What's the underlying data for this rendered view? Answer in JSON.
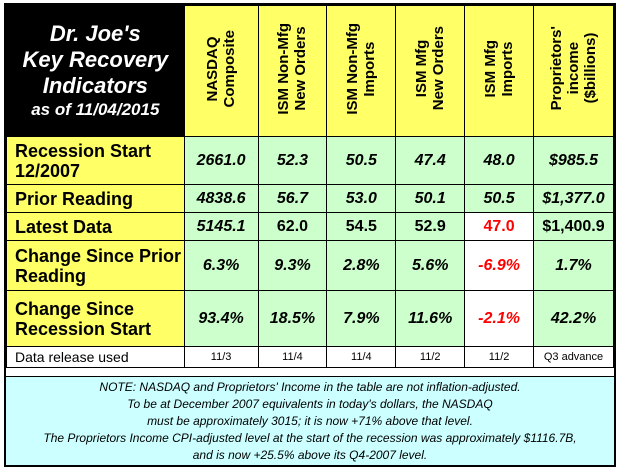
{
  "title": {
    "line1": "Dr. Joe's",
    "line2": "Key Recovery",
    "line3": "Indicators",
    "line4": "as of 11/04/2015"
  },
  "columns": [
    {
      "key": "nasdaq",
      "label": "NASDAQ\nComposite"
    },
    {
      "key": "ism_nonmfg_new_orders",
      "label": "ISM Non-Mfg\nNew Orders"
    },
    {
      "key": "ism_nonmfg_imports",
      "label": "ISM Non-Mfg\nImports"
    },
    {
      "key": "ism_mfg_new_orders",
      "label": "ISM Mfg\nNew Orders"
    },
    {
      "key": "ism_mfg_imports",
      "label": "ISM Mfg\nImports"
    },
    {
      "key": "proprietors_income",
      "label": "Proprietors'\nincome\n($billions)"
    }
  ],
  "rows": [
    {
      "label": "Recession Start 12/2007",
      "values": [
        "2661.0",
        "52.3",
        "50.5",
        "47.4",
        "48.0",
        "$985.5"
      ]
    },
    {
      "label": "Prior Reading",
      "values": [
        "4838.6",
        "56.7",
        "53.0",
        "50.1",
        "50.5",
        "$1,377.0"
      ]
    },
    {
      "label": "Latest Data",
      "values": [
        "5145.1",
        "62.0",
        "54.5",
        "52.9",
        "47.0",
        "$1,400.9"
      ]
    },
    {
      "label": "Change Since Prior Reading",
      "values": [
        "6.3%",
        "9.3%",
        "2.8%",
        "5.6%",
        "-6.9%",
        "1.7%"
      ]
    },
    {
      "label": "Change Since Recession Start",
      "values": [
        "93.4%",
        "18.5%",
        "7.9%",
        "11.6%",
        "-2.1%",
        "42.2%"
      ]
    }
  ],
  "release": {
    "label": "Data release used",
    "values": [
      "11/3",
      "11/4",
      "11/4",
      "11/2",
      "11/2",
      "Q3 advance"
    ]
  },
  "note": {
    "line1": "NOTE: NASDAQ and Proprietors' Income in the table are not inflation-adjusted.",
    "line2": "To be at December 2007 equivalents in today's dollars, the NASDAQ",
    "line3": "must be approximately 3015; it is now +71% above that level.",
    "line4": "The Proprietors Income CPI-adjusted level at the start of the recession was approximately $1116.7B,",
    "line5": "and is now +25.5% above its Q4-2007 level."
  },
  "colors": {
    "header_yellow": "#ffff66",
    "value_green": "#ccffcc",
    "note_cyan": "#ccffff",
    "negative_red": "#ff0000"
  }
}
